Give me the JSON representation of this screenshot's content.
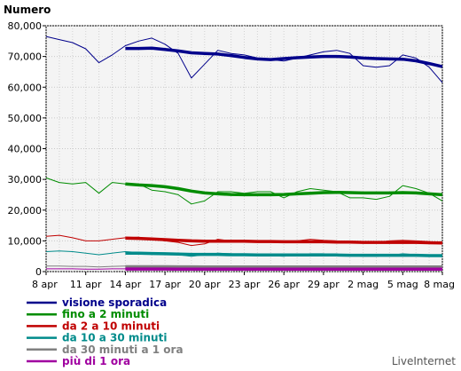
{
  "brand": "LiveInternet",
  "chart_data": {
    "type": "line",
    "title": "",
    "xlabel": "",
    "ylabel": "Numero",
    "ylim": [
      0,
      80000
    ],
    "yticks": [
      0,
      10000,
      20000,
      30000,
      40000,
      50000,
      60000,
      70000,
      80000
    ],
    "ytick_labels": [
      "0",
      "10,000",
      "20,000",
      "30,000",
      "40,000",
      "50,000",
      "60,000",
      "70,000",
      "80,000"
    ],
    "xtick_labels": [
      "8 apr",
      "11 apr",
      "14 apr",
      "17 apr",
      "20 apr",
      "23 apr",
      "26 apr",
      "29 apr",
      "2 mag",
      "5 mag",
      "8 mag"
    ],
    "x": [
      "8 apr",
      "9 apr",
      "10 apr",
      "11 apr",
      "12 apr",
      "13 apr",
      "14 apr",
      "15 apr",
      "16 apr",
      "17 apr",
      "18 apr",
      "19 apr",
      "20 apr",
      "21 apr",
      "22 apr",
      "23 apr",
      "24 apr",
      "25 apr",
      "26 apr",
      "27 apr",
      "28 apr",
      "29 apr",
      "30 apr",
      "1 mag",
      "2 mag",
      "3 mag",
      "4 mag",
      "5 mag",
      "6 mag",
      "7 mag",
      "8 mag"
    ],
    "grid": true,
    "legend_position": "bottom-left",
    "series": [
      {
        "name": "visione sporadica",
        "color": "#00008b",
        "values": [
          76500,
          75500,
          74500,
          72500,
          68000,
          70500,
          73500,
          75000,
          76000,
          74000,
          71000,
          63000,
          67500,
          72000,
          71000,
          70500,
          69500,
          69000,
          68500,
          69500,
          70500,
          71500,
          72000,
          71000,
          67000,
          66500,
          67000,
          70500,
          69500,
          66500,
          61500
        ],
        "trend": [
          null,
          null,
          null,
          null,
          null,
          null,
          72600,
          72600,
          72700,
          72300,
          71800,
          71200,
          71000,
          70800,
          70300,
          69700,
          69200,
          69000,
          69300,
          69600,
          69800,
          70000,
          70000,
          69800,
          69500,
          69300,
          69200,
          69100,
          68600,
          67700,
          66700
        ]
      },
      {
        "name": "fino a 2 minuti",
        "color": "#008c00",
        "values": [
          30500,
          29000,
          28500,
          29000,
          25500,
          29000,
          28500,
          28500,
          26500,
          26000,
          25000,
          22000,
          23000,
          26000,
          26000,
          25500,
          26000,
          26000,
          24000,
          26000,
          27000,
          26500,
          26000,
          24000,
          24000,
          23500,
          24500,
          28000,
          27000,
          25500,
          23000
        ],
        "trend": [
          null,
          null,
          null,
          null,
          null,
          null,
          28500,
          28200,
          28000,
          27600,
          27000,
          26200,
          25600,
          25300,
          25100,
          25000,
          25000,
          25000,
          25100,
          25300,
          25500,
          25700,
          25800,
          25700,
          25600,
          25600,
          25600,
          25700,
          25600,
          25300,
          25000
        ]
      },
      {
        "name": "da 2 a 10 minuti",
        "color": "#c00000",
        "values": [
          11500,
          11800,
          11000,
          10000,
          10000,
          10500,
          11000,
          11200,
          10500,
          10000,
          9500,
          8500,
          9000,
          10500,
          10000,
          10000,
          10000,
          9800,
          9500,
          10000,
          10500,
          10200,
          10000,
          9500,
          9500,
          9500,
          10000,
          10200,
          10000,
          9800,
          9000
        ],
        "trend": [
          null,
          null,
          null,
          null,
          null,
          null,
          10900,
          10800,
          10600,
          10400,
          10200,
          10000,
          9900,
          9900,
          9900,
          9900,
          9800,
          9800,
          9700,
          9700,
          9700,
          9700,
          9600,
          9600,
          9500,
          9500,
          9500,
          9500,
          9500,
          9400,
          9300
        ]
      },
      {
        "name": "da 10 a 30 minuti",
        "color": "#008b8b",
        "values": [
          6500,
          6700,
          6500,
          6000,
          5500,
          6000,
          6500,
          6200,
          6000,
          5800,
          5500,
          5000,
          5500,
          6000,
          5800,
          5500,
          5500,
          5200,
          5000,
          5500,
          5800,
          5800,
          5500,
          5200,
          5000,
          5000,
          5200,
          5800,
          5500,
          5500,
          4800
        ],
        "trend": [
          null,
          null,
          null,
          null,
          null,
          null,
          6000,
          6000,
          5900,
          5800,
          5700,
          5600,
          5600,
          5600,
          5500,
          5500,
          5400,
          5400,
          5400,
          5400,
          5400,
          5400,
          5400,
          5300,
          5300,
          5300,
          5300,
          5300,
          5300,
          5200,
          5200
        ]
      },
      {
        "name": "da 30 minuti a 1 ora",
        "color": "#808080",
        "values": [
          1800,
          1800,
          1700,
          1700,
          1500,
          1700,
          1800,
          1800,
          1700,
          1600,
          1500,
          1400,
          1500,
          1600,
          1600,
          1500,
          1500,
          1500,
          1400,
          1500,
          1600,
          1600,
          1500,
          1500,
          1400,
          1400,
          1500,
          1600,
          1500,
          1500,
          1400
        ],
        "trend": [
          null,
          null,
          null,
          null,
          null,
          null,
          1600,
          1600,
          1600,
          1600,
          1550,
          1550,
          1500,
          1500,
          1500,
          1500,
          1500,
          1500,
          1500,
          1500,
          1500,
          1500,
          1500,
          1500,
          1500,
          1500,
          1500,
          1500,
          1500,
          1500,
          1500
        ]
      },
      {
        "name": "più di 1 ora",
        "color": "#a000a0",
        "values": [
          900,
          900,
          900,
          800,
          800,
          900,
          900,
          900,
          900,
          800,
          800,
          700,
          800,
          800,
          800,
          800,
          800,
          800,
          700,
          800,
          800,
          800,
          800,
          800,
          700,
          700,
          800,
          800,
          800,
          800,
          700
        ],
        "trend": [
          null,
          null,
          null,
          null,
          null,
          null,
          850,
          850,
          850,
          850,
          820,
          820,
          800,
          800,
          800,
          800,
          800,
          800,
          800,
          800,
          800,
          800,
          800,
          800,
          800,
          800,
          800,
          800,
          800,
          800,
          800
        ]
      }
    ]
  }
}
